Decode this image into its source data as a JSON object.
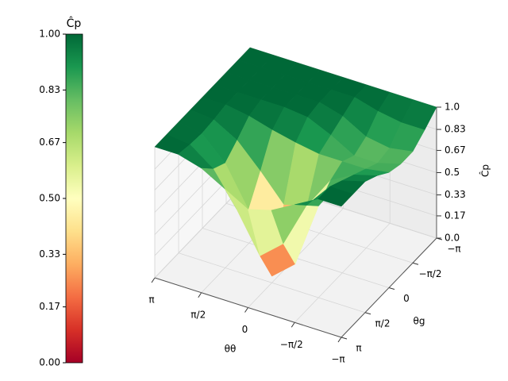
{
  "chart_data": {
    "type": "surface",
    "xlabel": "θθ",
    "ylabel": "θg",
    "zlabel": "Ĉp",
    "x": [
      3.1416,
      2.3562,
      1.5708,
      0.7854,
      0,
      -0.7854,
      -1.5708,
      -2.3562,
      -3.1416
    ],
    "y": [
      3.1416,
      2.3562,
      1.5708,
      0.7854,
      0,
      -0.7854,
      -1.5708,
      -2.3562,
      -3.1416
    ],
    "z": [
      [
        1,
        1,
        1,
        1,
        1,
        1,
        1,
        1,
        1
      ],
      [
        1,
        0.98,
        0.97,
        0.98,
        1,
        1,
        1,
        1,
        1
      ],
      [
        0.95,
        0.85,
        0.8,
        0.88,
        0.97,
        1,
        1,
        1,
        1
      ],
      [
        0.85,
        0.6,
        0.5,
        0.7,
        0.92,
        1,
        1,
        1,
        1
      ],
      [
        0.75,
        0.3,
        0.05,
        0.5,
        0.88,
        0.98,
        1,
        1,
        1
      ],
      [
        0.8,
        0.45,
        0.2,
        0.55,
        0.85,
        0.9,
        0.95,
        1,
        1
      ],
      [
        0.9,
        0.8,
        0.7,
        0.8,
        0.85,
        0.8,
        0.85,
        0.95,
        1
      ],
      [
        1,
        1,
        0.95,
        0.9,
        0.85,
        0.8,
        0.82,
        0.92,
        1
      ],
      [
        1,
        1,
        1,
        0.95,
        0.88,
        0.85,
        0.85,
        0.92,
        1
      ]
    ],
    "xlim": [
      3.1416,
      -3.1416
    ],
    "ylim": [
      3.1416,
      -3.1416
    ],
    "zlim": [
      0,
      1
    ],
    "xticks": [
      {
        "value": 3.1416,
        "label": "π"
      },
      {
        "value": 1.5708,
        "label": "π/2"
      },
      0,
      {
        "value": -1.5708,
        "label": "−π/2"
      },
      {
        "value": -3.1416,
        "label": "−π"
      }
    ],
    "yticks": [
      {
        "value": -3.1416,
        "label": "−π"
      },
      {
        "value": -1.5708,
        "label": "−π/2"
      },
      0,
      {
        "value": 1.5708,
        "label": "π/2"
      },
      {
        "value": 3.1416,
        "label": "π"
      }
    ],
    "zticks": [
      {
        "value": 0,
        "label": "0.0"
      },
      0.17,
      0.33,
      0.5,
      0.67,
      0.83,
      {
        "value": 1,
        "label": "1.0"
      }
    ],
    "grid": true,
    "colormap": [
      "#a50026",
      "#d73027",
      "#f46d43",
      "#fdae61",
      "#fee08b",
      "#ffffbf",
      "#d9ef8b",
      "#a6d96a",
      "#66bd63",
      "#1a9850",
      "#006837"
    ],
    "colorbar": {
      "label": "Ĉp",
      "lim": [
        0,
        1
      ],
      "ticks": [
        {
          "value": 0,
          "label": "0.00"
        },
        0.17,
        0.33,
        {
          "value": 0.5,
          "label": "0.50"
        },
        0.67,
        0.83,
        {
          "value": 1,
          "label": "1.00"
        }
      ]
    }
  }
}
